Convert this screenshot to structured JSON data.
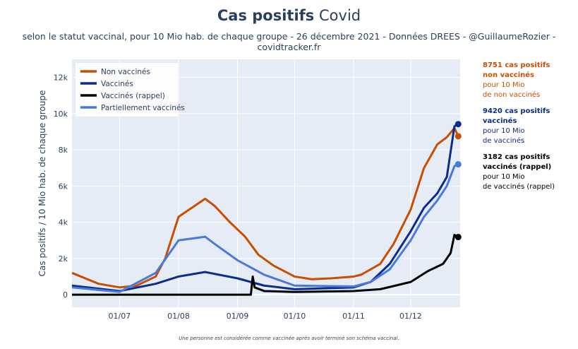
{
  "title_bold": "Cas positifs",
  "title_rest": "Covid",
  "subtitle": "selon le statut vaccinal, pour 10 Mio hab. de chaque groupe - 26 décembre 2021 - Données DREES - @GuillaumeRozier - covidtracker.fr",
  "footer": "Une personne est considérée comme vaccinée après avoir terminé son schéma vaccinal.",
  "annotations": [
    {
      "bold1": "8751 cas positifs",
      "bold2": "non vaccinés",
      "line1": "pour 10 Mio",
      "line2": "de non vaccinés",
      "color": "#c94e00"
    },
    {
      "bold1": "9420 cas positifs",
      "bold2": "vaccinés",
      "line1": "pour 10 Mio",
      "line2": "de vaccinés",
      "color": "#0b2c8c"
    },
    {
      "bold1": "3182 cas positifs",
      "bold2": "vaccinés (rappel)",
      "line1": "pour 10 Mio",
      "line2": "de vaccinés (rappel)",
      "color": "#000000"
    }
  ],
  "chart_data": {
    "type": "line",
    "ylabel": "Cas positifs / 10 Mio hab. de chaque groupe",
    "xlabel": "",
    "xlim": [
      "2021-06-06",
      "2021-12-27"
    ],
    "ylim": [
      -700,
      13000
    ],
    "yticks": [
      0,
      2000,
      4000,
      6000,
      8000,
      10000,
      12000
    ],
    "ytick_labels": [
      "0",
      "2k",
      "4k",
      "6k",
      "8k",
      "10k",
      "12k"
    ],
    "xticks": [
      "2021-07-01",
      "2021-08-01",
      "2021-09-01",
      "2021-10-01",
      "2021-11-01",
      "2021-12-01"
    ],
    "xtick_labels": [
      "01/07",
      "01/08",
      "01/09",
      "01/10",
      "01/11",
      "01/12"
    ],
    "legend_position": "top-left",
    "series": [
      {
        "name": "Non vaccinés",
        "color": "#c94e00",
        "x": [
          "2021-06-06",
          "2021-06-20",
          "2021-07-01",
          "2021-07-10",
          "2021-07-20",
          "2021-07-25",
          "2021-08-01",
          "2021-08-08",
          "2021-08-15",
          "2021-08-20",
          "2021-08-28",
          "2021-09-05",
          "2021-09-12",
          "2021-09-20",
          "2021-10-01",
          "2021-10-10",
          "2021-10-20",
          "2021-11-01",
          "2021-11-05",
          "2021-11-15",
          "2021-11-22",
          "2021-12-01",
          "2021-12-08",
          "2021-12-15",
          "2021-12-20",
          "2021-12-24",
          "2021-12-26"
        ],
        "y": [
          1200,
          600,
          400,
          500,
          1000,
          2000,
          4300,
          4800,
          5300,
          4900,
          4000,
          3200,
          2200,
          1600,
          1000,
          850,
          900,
          1000,
          1100,
          1700,
          2800,
          4700,
          7000,
          8300,
          8700,
          9200,
          8751
        ]
      },
      {
        "name": "Vaccinés",
        "color": "#0b2c8c",
        "x": [
          "2021-06-06",
          "2021-07-01",
          "2021-07-20",
          "2021-08-01",
          "2021-08-15",
          "2021-09-01",
          "2021-09-15",
          "2021-10-01",
          "2021-11-01",
          "2021-11-10",
          "2021-11-20",
          "2021-12-01",
          "2021-12-08",
          "2021-12-15",
          "2021-12-20",
          "2021-12-24",
          "2021-12-26"
        ],
        "y": [
          500,
          200,
          600,
          1000,
          1250,
          900,
          500,
          300,
          400,
          700,
          1700,
          3500,
          4800,
          5600,
          6500,
          9300,
          9420
        ]
      },
      {
        "name": "Vaccinés (rappel)",
        "color": "#000000",
        "x": [
          "2021-06-06",
          "2021-09-08",
          "2021-09-09",
          "2021-09-10",
          "2021-09-15",
          "2021-10-01",
          "2021-11-01",
          "2021-11-15",
          "2021-12-01",
          "2021-12-10",
          "2021-12-18",
          "2021-12-22",
          "2021-12-24",
          "2021-12-26"
        ],
        "y": [
          0,
          0,
          1000,
          400,
          200,
          150,
          200,
          300,
          700,
          1300,
          1700,
          2300,
          3300,
          3182
        ]
      },
      {
        "name": "Partiellement vaccinés",
        "color": "#4a78db",
        "x": [
          "2021-06-06",
          "2021-07-01",
          "2021-07-20",
          "2021-08-01",
          "2021-08-15",
          "2021-08-20",
          "2021-09-01",
          "2021-09-15",
          "2021-10-01",
          "2021-11-01",
          "2021-11-10",
          "2021-11-20",
          "2021-12-01",
          "2021-12-08",
          "2021-12-15",
          "2021-12-20",
          "2021-12-24",
          "2021-12-26"
        ],
        "y": [
          400,
          150,
          1200,
          3000,
          3200,
          2800,
          1900,
          1100,
          500,
          450,
          700,
          1400,
          3000,
          4300,
          5200,
          6000,
          7100,
          7200
        ]
      }
    ]
  }
}
